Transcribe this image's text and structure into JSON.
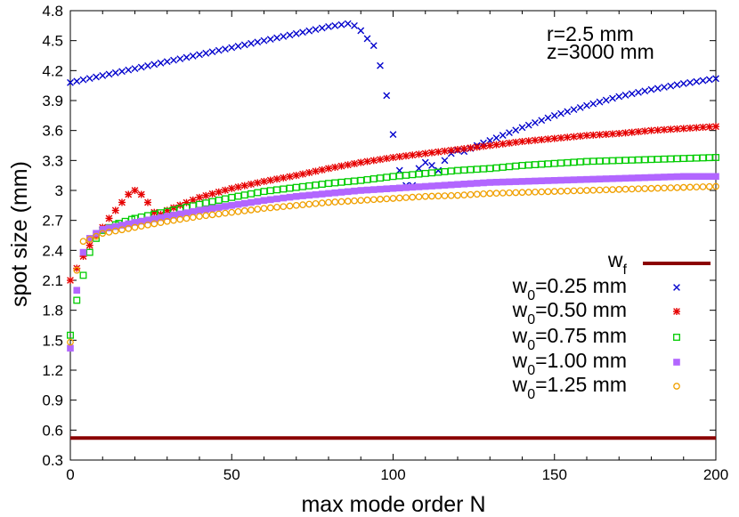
{
  "chart_data": {
    "type": "scatter",
    "title": "",
    "xlabel": "max mode order N",
    "ylabel": "spot size (mm)",
    "xlim": [
      0,
      200
    ],
    "ylim": [
      0.3,
      4.8
    ],
    "xticks": [
      "0",
      "50",
      "100",
      "150",
      "200"
    ],
    "yticks": [
      "0.3",
      "0.6",
      "0.9",
      "1.2",
      "1.5",
      "1.8",
      "2.1",
      "2.4",
      "2.7",
      "3",
      "3.3",
      "3.6",
      "3.9",
      "4.2",
      "4.5",
      "4.8"
    ],
    "annotations": [
      "r=2.5 mm",
      "z=3000 mm"
    ],
    "legend_position": "right",
    "reference_line": {
      "name": "w_f",
      "name_base": "w",
      "name_sub": "f",
      "y": 0.52,
      "color": "#8b0000"
    },
    "series": [
      {
        "name": "w_0=0.25 mm",
        "label_base": "w",
        "label_sub": "0",
        "label_rest": "=0.25 mm",
        "marker": "x",
        "color": "#0000cc",
        "points": [
          [
            0,
            4.08
          ],
          [
            10,
            4.15
          ],
          [
            20,
            4.22
          ],
          [
            30,
            4.29
          ],
          [
            40,
            4.36
          ],
          [
            50,
            4.43
          ],
          [
            60,
            4.5
          ],
          [
            70,
            4.57
          ],
          [
            80,
            4.64
          ],
          [
            86,
            4.67
          ],
          [
            88,
            4.65
          ],
          [
            90,
            4.6
          ],
          [
            92,
            4.52
          ],
          [
            94,
            4.45
          ],
          [
            96,
            4.25
          ],
          [
            98,
            3.95
          ],
          [
            100,
            3.56
          ],
          [
            102,
            3.2
          ],
          [
            104,
            3.05
          ],
          [
            106,
            3.05
          ],
          [
            108,
            3.22
          ],
          [
            110,
            3.28
          ],
          [
            112,
            3.25
          ],
          [
            114,
            3.2
          ],
          [
            116,
            3.3
          ],
          [
            118,
            3.37
          ],
          [
            120,
            3.4
          ],
          [
            122,
            3.39
          ],
          [
            126,
            3.45
          ],
          [
            130,
            3.5
          ],
          [
            140,
            3.63
          ],
          [
            150,
            3.75
          ],
          [
            160,
            3.85
          ],
          [
            170,
            3.94
          ],
          [
            180,
            4.01
          ],
          [
            190,
            4.07
          ],
          [
            200,
            4.12
          ]
        ]
      },
      {
        "name": "w_0=0.50 mm",
        "label_base": "w",
        "label_sub": "0",
        "label_rest": "=0.50 mm",
        "marker": "asterisk",
        "color": "#e60000",
        "points": [
          [
            0,
            2.1
          ],
          [
            2,
            2.22
          ],
          [
            4,
            2.34
          ],
          [
            6,
            2.45
          ],
          [
            8,
            2.55
          ],
          [
            10,
            2.63
          ],
          [
            12,
            2.72
          ],
          [
            14,
            2.8
          ],
          [
            16,
            2.88
          ],
          [
            18,
            2.96
          ],
          [
            20,
            3.0
          ],
          [
            22,
            2.96
          ],
          [
            24,
            2.88
          ],
          [
            26,
            2.78
          ],
          [
            28,
            2.76
          ],
          [
            30,
            2.8
          ],
          [
            40,
            2.93
          ],
          [
            50,
            3.02
          ],
          [
            60,
            3.09
          ],
          [
            70,
            3.15
          ],
          [
            80,
            3.22
          ],
          [
            90,
            3.28
          ],
          [
            100,
            3.33
          ],
          [
            110,
            3.37
          ],
          [
            120,
            3.41
          ],
          [
            130,
            3.45
          ],
          [
            140,
            3.49
          ],
          [
            150,
            3.52
          ],
          [
            160,
            3.55
          ],
          [
            170,
            3.57
          ],
          [
            180,
            3.6
          ],
          [
            190,
            3.62
          ],
          [
            200,
            3.64
          ]
        ]
      },
      {
        "name": "w_0=0.75 mm",
        "label_base": "w",
        "label_sub": "0",
        "label_rest": "=0.75 mm",
        "marker": "square",
        "color": "#00cc00",
        "points": [
          [
            0,
            1.55
          ],
          [
            2,
            1.9
          ],
          [
            4,
            2.15
          ],
          [
            6,
            2.38
          ],
          [
            8,
            2.52
          ],
          [
            10,
            2.6
          ],
          [
            15,
            2.67
          ],
          [
            20,
            2.72
          ],
          [
            30,
            2.79
          ],
          [
            40,
            2.86
          ],
          [
            50,
            2.93
          ],
          [
            60,
            2.99
          ],
          [
            70,
            3.03
          ],
          [
            80,
            3.07
          ],
          [
            90,
            3.1
          ],
          [
            100,
            3.14
          ],
          [
            110,
            3.17
          ],
          [
            120,
            3.2
          ],
          [
            130,
            3.22
          ],
          [
            140,
            3.25
          ],
          [
            150,
            3.27
          ],
          [
            160,
            3.29
          ],
          [
            170,
            3.3
          ],
          [
            180,
            3.31
          ],
          [
            190,
            3.32
          ],
          [
            200,
            3.33
          ]
        ]
      },
      {
        "name": "w_0=1.00 mm",
        "label_base": "w",
        "label_sub": "0",
        "label_rest": "=1.00 mm",
        "marker": "filled-square",
        "color": "#b266ff",
        "points": [
          [
            0,
            1.42
          ],
          [
            2,
            2.0
          ],
          [
            4,
            2.38
          ],
          [
            6,
            2.52
          ],
          [
            8,
            2.57
          ],
          [
            10,
            2.61
          ],
          [
            20,
            2.68
          ],
          [
            30,
            2.74
          ],
          [
            40,
            2.8
          ],
          [
            50,
            2.85
          ],
          [
            60,
            2.9
          ],
          [
            70,
            2.94
          ],
          [
            80,
            2.97
          ],
          [
            90,
            3.0
          ],
          [
            100,
            3.02
          ],
          [
            110,
            3.04
          ],
          [
            120,
            3.06
          ],
          [
            130,
            3.08
          ],
          [
            140,
            3.09
          ],
          [
            150,
            3.1
          ],
          [
            160,
            3.11
          ],
          [
            170,
            3.12
          ],
          [
            180,
            3.13
          ],
          [
            190,
            3.14
          ],
          [
            200,
            3.14
          ]
        ]
      },
      {
        "name": "w_0=1.25 mm",
        "label_base": "w",
        "label_sub": "0",
        "label_rest": "=1.25 mm",
        "marker": "circle",
        "color": "#f0a000",
        "points": [
          [
            0,
            1.48
          ],
          [
            2,
            2.2
          ],
          [
            4,
            2.49
          ],
          [
            6,
            2.51
          ],
          [
            8,
            2.54
          ],
          [
            10,
            2.57
          ],
          [
            20,
            2.63
          ],
          [
            30,
            2.69
          ],
          [
            40,
            2.74
          ],
          [
            50,
            2.78
          ],
          [
            60,
            2.82
          ],
          [
            70,
            2.85
          ],
          [
            80,
            2.88
          ],
          [
            90,
            2.9
          ],
          [
            100,
            2.92
          ],
          [
            110,
            2.94
          ],
          [
            120,
            2.95
          ],
          [
            130,
            2.97
          ],
          [
            140,
            2.98
          ],
          [
            150,
            2.99
          ],
          [
            160,
            3.0
          ],
          [
            170,
            3.01
          ],
          [
            180,
            3.02
          ],
          [
            190,
            3.03
          ],
          [
            200,
            3.04
          ]
        ]
      }
    ]
  }
}
